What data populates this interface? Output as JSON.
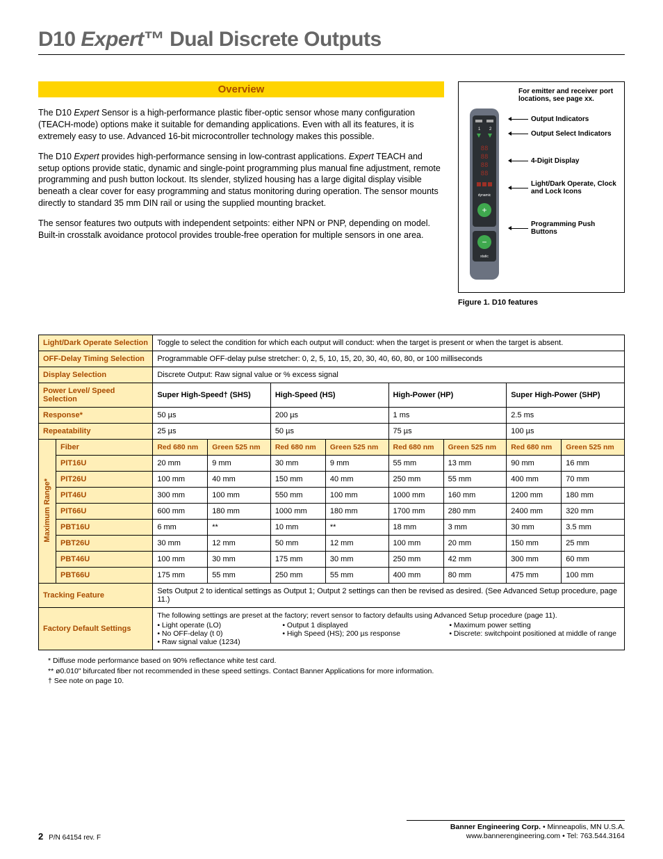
{
  "title": {
    "pre": "D10 ",
    "italic": "Expert",
    "tm": "™",
    "post": " Dual Discrete Outputs"
  },
  "overview": {
    "heading": "Overview",
    "p1a": "The D10 ",
    "p1b": "Expert",
    "p1c": " Sensor is a high-performance plastic fiber-optic sensor whose many configuration (TEACH-mode) options make it suitable for demanding applications. Even with all its features, it is extremely easy to use. Advanced 16-bit microcontroller technology makes this possible.",
    "p2a": "The D10 ",
    "p2b": "Expert",
    "p2c": " provides high-performance sensing in low-contrast applications. ",
    "p2d": "Expert",
    "p2e": " TEACH and setup options provide static, dynamic and single-point programming plus manual fine adjustment, remote programming and push button lockout. Its slender, stylized housing has a large digital display visible beneath a clear cover for easy programming and status monitoring during operation. The sensor mounts directly to standard 35 mm DIN rail or using the supplied mounting bracket.",
    "p3": "The sensor features two outputs with independent setpoints: either NPN or PNP, depending on model. Built-in crosstalk avoidance protocol provides trouble-free operation for multiple sensors in one area."
  },
  "figure": {
    "top_note": "For emitter and receiver port locations, see page xx.",
    "labels": [
      "Output Indicators",
      "Output Select Indicators",
      "4-Digit Display",
      "Light/Dark Operate, Clock and Lock Icons",
      "Programming Push Buttons"
    ],
    "caption": "Figure 1.  D10 features",
    "sensor": {
      "body_color": "#6b7280",
      "dark_panel": "#2b2f33",
      "green": "#3fa84e",
      "red": "#9e3026",
      "display_text": "8888",
      "dynamic": "dynamic",
      "static": "static"
    }
  },
  "table": {
    "rows_simple": [
      {
        "label": "Light/Dark Operate Selection",
        "text": "Toggle to select the condition for which each output will conduct: when the target is present or when the target is absent."
      },
      {
        "label": "OFF-Delay Timing Selection",
        "text": "Programmable OFF-delay pulse stretcher: 0, 2, 5, 10, 15, 20, 30, 40, 60, 80, or 100 milliseconds"
      },
      {
        "label": "Display Selection",
        "text": "Discrete Output: Raw signal value or % excess signal"
      }
    ],
    "power_label": "Power Level/ Speed Selection",
    "power_cols": [
      "Super High-Speed† (SHS)",
      "High-Speed (HS)",
      "High-Power (HP)",
      "Super High-Power (SHP)"
    ],
    "response_label": "Response*",
    "response": [
      "50 µs",
      "200 µs",
      "1 ms",
      "2.5 ms"
    ],
    "repeat_label": "Repeatability",
    "repeat": [
      "25 µs",
      "50 µs",
      "75 µs",
      "100 µs"
    ],
    "range_label": "Maximum Range*",
    "fiber_label": "Fiber",
    "fiber_heads": [
      "Red 680 nm",
      "Green 525 nm",
      "Red 680 nm",
      "Green 525 nm",
      "Red 680 nm",
      "Green 525 nm",
      "Red 680 nm",
      "Green 525 nm"
    ],
    "models": [
      {
        "name": "PIT16U",
        "v": [
          "20 mm",
          "9 mm",
          "30 mm",
          "9 mm",
          "55 mm",
          "13 mm",
          "90 mm",
          "16 mm"
        ]
      },
      {
        "name": "PIT26U",
        "v": [
          "100 mm",
          "40 mm",
          "150 mm",
          "40 mm",
          "250 mm",
          "55 mm",
          "400 mm",
          "70 mm"
        ]
      },
      {
        "name": "PIT46U",
        "v": [
          "300 mm",
          "100 mm",
          "550 mm",
          "100 mm",
          "1000 mm",
          "160 mm",
          "1200 mm",
          "180 mm"
        ]
      },
      {
        "name": "PIT66U",
        "v": [
          "600 mm",
          "180 mm",
          "1000 mm",
          "180 mm",
          "1700 mm",
          "280 mm",
          "2400 mm",
          "320 mm"
        ]
      },
      {
        "name": "PBT16U",
        "v": [
          "6 mm",
          "**",
          "10 mm",
          "**",
          "18 mm",
          "3 mm",
          "30 mm",
          "3.5 mm"
        ]
      },
      {
        "name": "PBT26U",
        "v": [
          "30 mm",
          "12 mm",
          "50 mm",
          "12 mm",
          "100 mm",
          "20 mm",
          "150 mm",
          "25 mm"
        ]
      },
      {
        "name": "PBT46U",
        "v": [
          "100 mm",
          "30 mm",
          "175 mm",
          "30 mm",
          "250 mm",
          "42 mm",
          "300 mm",
          "60 mm"
        ]
      },
      {
        "name": "PBT66U",
        "v": [
          "175 mm",
          "55 mm",
          "250 mm",
          "55 mm",
          "400 mm",
          "80 mm",
          "475 mm",
          "100 mm"
        ]
      }
    ],
    "tracking_label": "Tracking Feature",
    "tracking_text": "Sets Output 2 to identical settings as Output 1; Output 2 settings can then be revised as desired. (See Advanced Setup procedure, page 11.)",
    "fd_label": "Factory Default Settings",
    "fd_intro": "The following settings are preset at the factory; revert sensor to factory defaults using Advanced Setup procedure (page 11).",
    "fd_items": [
      [
        "• Light operate (LO)",
        "• No OFF-delay (t 0)",
        "• Raw signal value (1234)"
      ],
      [
        "• Output 1 displayed",
        "• High Speed (HS); 200 µs response"
      ],
      [
        "• Maximum power setting",
        "• Discrete: switchpoint positioned at middle of range"
      ]
    ]
  },
  "footnotes": [
    "* Diffuse mode performance based on 90% reflectance white test card.",
    "** ø0.010\" bifurcated fiber not recommended in these speed settings. Contact Banner Applications for more information.",
    "† See note on page 10."
  ],
  "footer": {
    "page": "2",
    "pn": "P/N 64154 rev. F",
    "company": "Banner Engineering Corp.",
    "loc": " • Minneapolis, MN U.S.A.",
    "web": "www.bannerengineering.com  •  Tel: 763.544.3164"
  }
}
